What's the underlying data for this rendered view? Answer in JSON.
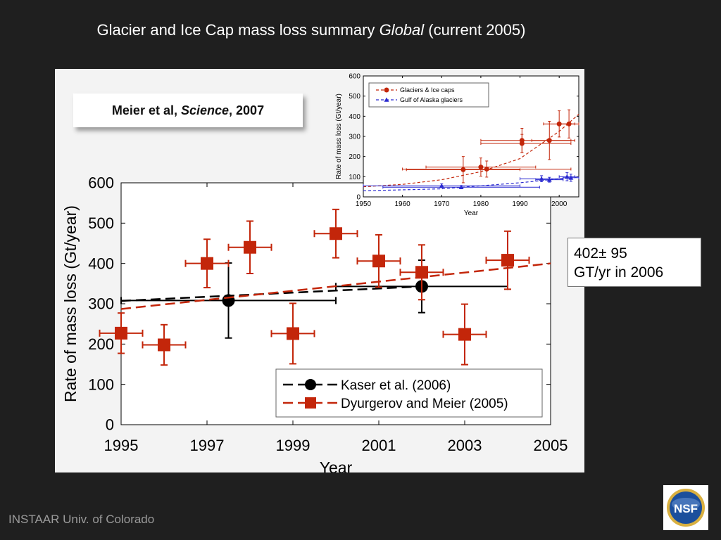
{
  "slide": {
    "title_main": "Glacier and Ice Cap mass loss summary",
    "title_italic": "Global",
    "title_suffix": "(current 2005)",
    "citation_author": "Meier et al,",
    "citation_journal": "Science",
    "citation_year": ", 2007",
    "callout_line1": "402± 95",
    "callout_line2": "GT/yr in 2006",
    "footer": "INSTAAR Univ. of Colorado",
    "logo_text": "NSF"
  },
  "colors": {
    "background": "#1f1f1f",
    "panel": "#f3f3f3",
    "kaser": "#000000",
    "dyurgerov": "#c3260a",
    "gulf_alaska": "#2a2ad0"
  },
  "chart_data": [
    {
      "type": "scatter",
      "xlabel": "Year",
      "ylabel": "Rate of mass loss (Gt/year)",
      "xlim": [
        1995,
        2005
      ],
      "ylim": [
        0,
        600
      ],
      "xticks": [
        1995,
        1997,
        1999,
        2001,
        2003,
        2005
      ],
      "yticks": [
        0,
        100,
        200,
        300,
        400,
        500,
        600
      ],
      "legend_position": "bottom-right",
      "series": [
        {
          "name": "Kaser et al. (2006)",
          "marker": "circle",
          "color": "#000000",
          "points": [
            {
              "x": 1997.5,
              "y": 308,
              "x_from": 1995,
              "x_to": 2000,
              "y_err": 93
            },
            {
              "x": 2002,
              "y": 343,
              "x_from": 2000,
              "x_to": 2004,
              "y_err": 65
            }
          ],
          "trend": [
            [
              1995,
              307
            ],
            [
              2002,
              343
            ]
          ]
        },
        {
          "name": "Dyurgerov and Meier (2005)",
          "marker": "square",
          "color": "#c3260a",
          "points": [
            {
              "x": 1995,
              "y": 227,
              "x_err": 0.5,
              "y_err": 50
            },
            {
              "x": 1996,
              "y": 198,
              "x_err": 0.5,
              "y_err": 50
            },
            {
              "x": 1997,
              "y": 400,
              "x_err": 0.5,
              "y_err": 60
            },
            {
              "x": 1998,
              "y": 440,
              "x_err": 0.5,
              "y_err": 65
            },
            {
              "x": 1999,
              "y": 226,
              "x_err": 0.5,
              "y_err": 75
            },
            {
              "x": 2000,
              "y": 474,
              "x_err": 0.5,
              "y_err": 60
            },
            {
              "x": 2001,
              "y": 406,
              "x_err": 0.5,
              "y_err": 65
            },
            {
              "x": 2002,
              "y": 378,
              "x_err": 0.5,
              "y_err": 68
            },
            {
              "x": 2003,
              "y": 224,
              "x_err": 0.5,
              "y_err": 75
            },
            {
              "x": 2004,
              "y": 408,
              "x_err": 0.5,
              "y_err": 72
            }
          ],
          "trend": [
            [
              1995,
              287
            ],
            [
              2005,
              400
            ]
          ]
        }
      ]
    },
    {
      "type": "scatter",
      "xlabel": "Year",
      "ylabel": "Rate of mass loss (Gt/year)",
      "xlim": [
        1950,
        2005
      ],
      "ylim": [
        0,
        600
      ],
      "xticks": [
        1950,
        1960,
        1970,
        1980,
        1990,
        2000
      ],
      "yticks": [
        0,
        100,
        200,
        300,
        400,
        500,
        600
      ],
      "legend_position": "top-left",
      "series": [
        {
          "name": "Glaciers & Ice caps",
          "marker": "circle",
          "color": "#c3260a",
          "points": [
            {
              "x": 1975.5,
              "y": 135,
              "x_from": 1961,
              "x_to": 1990,
              "y_err": 65
            },
            {
              "x": 1980,
              "y": 148,
              "x_from": 1966,
              "x_to": 1994,
              "y_err": 45
            },
            {
              "x": 1981.5,
              "y": 138,
              "x_from": 1960,
              "x_to": 2003,
              "y_err": 40
            },
            {
              "x": 1990.5,
              "y": 265,
              "x_from": 1980,
              "x_to": 2003,
              "y_err": 45
            },
            {
              "x": 1990.5,
              "y": 280,
              "x_from": 1980,
              "x_to": 2003,
              "y_err": 60
            },
            {
              "x": 1997.5,
              "y": 280,
              "x_from": 1993,
              "x_to": 2004,
              "y_err": 95
            },
            {
              "x": 2000,
              "y": 362,
              "x_from": 1996,
              "x_to": 2004,
              "y_err": 65
            },
            {
              "x": 2002.5,
              "y": 362,
              "x_from": 2000,
              "x_to": 2005,
              "y_err": 70
            }
          ],
          "trend": [
            [
              1950,
              50
            ],
            [
              1960,
              62
            ],
            [
              1970,
              85
            ],
            [
              1980,
              125
            ],
            [
              1990,
              190
            ],
            [
              2000,
              325
            ],
            [
              2005,
              410
            ]
          ]
        },
        {
          "name": "Gulf of Alaska glaciers",
          "marker": "triangle",
          "color": "#2a2ad0",
          "points": [
            {
              "x": 1970,
              "y": 55,
              "x_from": 1950,
              "x_to": 1990,
              "y_err": 10
            },
            {
              "x": 1975,
              "y": 48,
              "x_from": 1955,
              "x_to": 1995,
              "y_err": 8
            },
            {
              "x": 1995.5,
              "y": 90,
              "x_from": 1990,
              "x_to": 2001,
              "y_err": 15
            },
            {
              "x": 1997.5,
              "y": 85,
              "x_from": 1994,
              "x_to": 2001,
              "y_err": 12
            },
            {
              "x": 2002,
              "y": 100,
              "x_from": 2000,
              "x_to": 2004,
              "y_err": 20
            },
            {
              "x": 2003,
              "y": 95,
              "x_from": 2001,
              "x_to": 2005,
              "y_err": 18
            }
          ],
          "trend": [
            [
              1950,
              30
            ],
            [
              1970,
              40
            ],
            [
              1990,
              70
            ],
            [
              2005,
              100
            ]
          ]
        }
      ]
    }
  ]
}
